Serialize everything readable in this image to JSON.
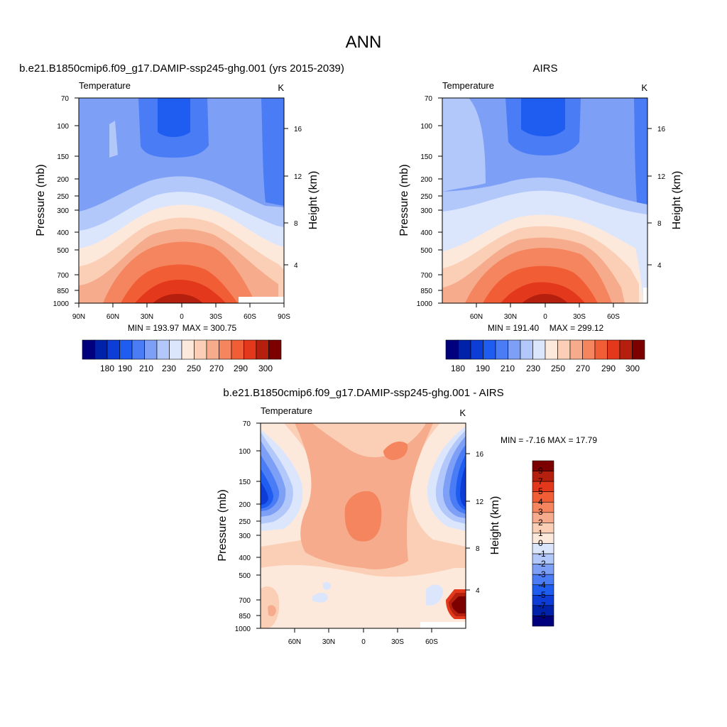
{
  "page_title": "ANN",
  "colors": {
    "scale_absolute": [
      "#00007d",
      "#0022a8",
      "#0d3dd6",
      "#1f5cf0",
      "#4a7cf5",
      "#7e9ff6",
      "#b3c8fa",
      "#dbe6fc",
      "#fde9dc",
      "#fbcfb5",
      "#f6ac8c",
      "#f4855f",
      "#f15e36",
      "#e4381c",
      "#b5200e",
      "#7d0000"
    ],
    "scale_difference": [
      "#00007d",
      "#0022a8",
      "#0d3dd6",
      "#1f5cf0",
      "#4a7cf5",
      "#7e9ff6",
      "#b3c8fa",
      "#dbe6fc",
      "#fde9dc",
      "#fbcfb5",
      "#f6ac8c",
      "#f4855f",
      "#f15e36",
      "#e4381c",
      "#b5200e",
      "#7d0000"
    ]
  },
  "chart_data": [
    {
      "type": "heatmap",
      "title": "b.e21.B1850cmip6.f09_g17.DAMIP-ssp245-ghg.001 (yrs 2015-2039)",
      "subtitle_left": "Temperature",
      "subtitle_right": "K",
      "ylabel": "Pressure (mb)",
      "ylabel_right": "Height (km)",
      "yticks": [
        "70",
        "100",
        "150",
        "200",
        "250",
        "300",
        "400",
        "500",
        "700",
        "850",
        "1000"
      ],
      "yticks_right": [
        "16",
        "12",
        "8",
        "4"
      ],
      "xticks": [
        "90N",
        "60N",
        "30N",
        "0",
        "30S",
        "60S",
        "90S"
      ],
      "min_label": "MIN = 193.97",
      "max_label": "MAX = 300.75",
      "colorbar_labels": [
        "180",
        "190",
        "210",
        "230",
        "250",
        "270",
        "290",
        "300"
      ],
      "ylim": [
        70,
        1000
      ],
      "xlim": [
        90,
        -90
      ]
    },
    {
      "type": "heatmap",
      "title": "AIRS",
      "subtitle_left": "Temperature",
      "subtitle_right": "K",
      "ylabel": "Pressure (mb)",
      "ylabel_right": "Height (km)",
      "yticks": [
        "70",
        "100",
        "150",
        "200",
        "250",
        "300",
        "400",
        "500",
        "700",
        "850",
        "1000"
      ],
      "yticks_right": [
        "16",
        "12",
        "8",
        "4"
      ],
      "xticks": [
        "60N",
        "30N",
        "0",
        "30S",
        "60S"
      ],
      "min_label": "MIN = 191.40",
      "max_label": "MAX = 299.12",
      "colorbar_labels": [
        "180",
        "190",
        "210",
        "230",
        "250",
        "270",
        "290",
        "300"
      ],
      "ylim": [
        70,
        1000
      ]
    },
    {
      "type": "heatmap",
      "title": "b.e21.B1850cmip6.f09_g17.DAMIP-ssp245-ghg.001 - AIRS",
      "subtitle_left": "Temperature",
      "subtitle_right": "K",
      "ylabel": "Pressure (mb)",
      "ylabel_right": "Height (km)",
      "yticks": [
        "70",
        "100",
        "150",
        "200",
        "250",
        "300",
        "400",
        "500",
        "700",
        "850",
        "1000"
      ],
      "yticks_right": [
        "16",
        "12",
        "8",
        "4"
      ],
      "xticks": [
        "60N",
        "30N",
        "0",
        "30S",
        "60S"
      ],
      "minmax_label": "MIN =  -7.16  MAX =  17.79",
      "colorbar_labels": [
        "9",
        "7",
        "5",
        "4",
        "3",
        "2",
        "1",
        "0",
        "-1",
        "-2",
        "-3",
        "-4",
        "-5",
        "-7",
        "-9"
      ],
      "ylim": [
        70,
        1000
      ]
    }
  ]
}
